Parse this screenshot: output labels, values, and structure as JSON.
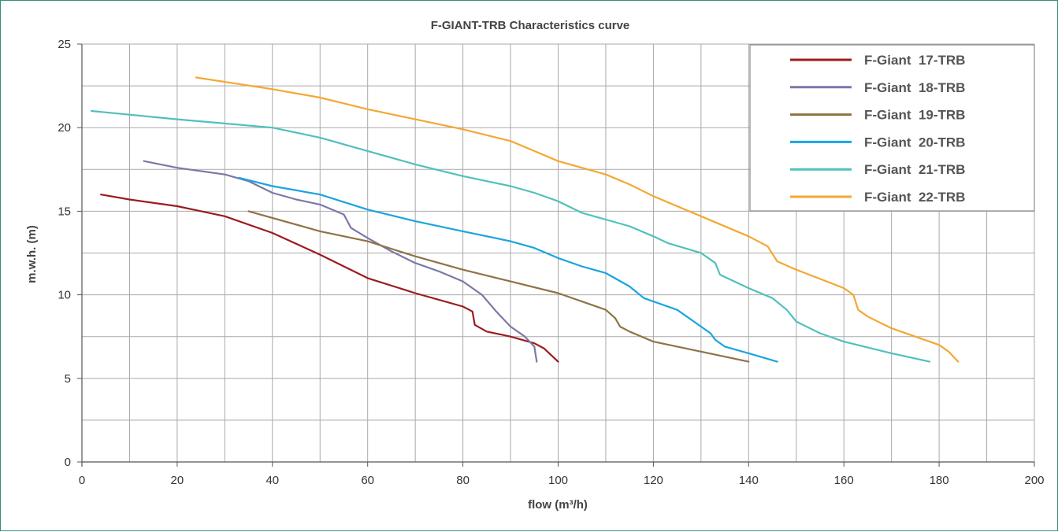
{
  "chart_data": {
    "type": "line",
    "title": "F-GIANT-TRB  Characteristics curve",
    "xlabel": "flow (m³/h)",
    "ylabel": "m.w.h. (m)",
    "xlim": [
      0,
      200
    ],
    "ylim": [
      0,
      25
    ],
    "x_ticks": [
      0,
      20,
      40,
      60,
      80,
      100,
      120,
      140,
      160,
      180,
      200
    ],
    "y_ticks": [
      0,
      5,
      10,
      15,
      20,
      25
    ],
    "grid": true,
    "legend_position": "top-right",
    "series": [
      {
        "name": "F-Giant  17-TRB",
        "color": "#9b1c20",
        "points": [
          [
            4,
            16
          ],
          [
            10,
            15.7
          ],
          [
            20,
            15.3
          ],
          [
            30,
            14.7
          ],
          [
            40,
            13.7
          ],
          [
            50,
            12.4
          ],
          [
            60,
            11.0
          ],
          [
            70,
            10.1
          ],
          [
            80,
            9.3
          ],
          [
            82,
            9.0
          ],
          [
            82.5,
            8.2
          ],
          [
            85,
            7.8
          ],
          [
            90,
            7.5
          ],
          [
            95,
            7.1
          ],
          [
            97,
            6.8
          ],
          [
            100,
            6
          ]
        ]
      },
      {
        "name": "F-Giant  18-TRB",
        "color": "#7b78a8",
        "points": [
          [
            13,
            18
          ],
          [
            20,
            17.6
          ],
          [
            30,
            17.2
          ],
          [
            35,
            16.8
          ],
          [
            40,
            16.1
          ],
          [
            45,
            15.7
          ],
          [
            50,
            15.4
          ],
          [
            55,
            14.8
          ],
          [
            56.5,
            14.0
          ],
          [
            60,
            13.4
          ],
          [
            65,
            12.6
          ],
          [
            70,
            11.9
          ],
          [
            75,
            11.4
          ],
          [
            80,
            10.8
          ],
          [
            84,
            10.0
          ],
          [
            87,
            9.0
          ],
          [
            90,
            8.1
          ],
          [
            93,
            7.5
          ],
          [
            95,
            6.9
          ],
          [
            95.5,
            6
          ]
        ]
      },
      {
        "name": "F-Giant  19-TRB",
        "color": "#8e7346",
        "points": [
          [
            35,
            15
          ],
          [
            40,
            14.6
          ],
          [
            50,
            13.8
          ],
          [
            60,
            13.2
          ],
          [
            70,
            12.3
          ],
          [
            80,
            11.5
          ],
          [
            90,
            10.8
          ],
          [
            100,
            10.1
          ],
          [
            105,
            9.6
          ],
          [
            110,
            9.1
          ],
          [
            112,
            8.6
          ],
          [
            113,
            8.1
          ],
          [
            115,
            7.8
          ],
          [
            120,
            7.2
          ],
          [
            130,
            6.6
          ],
          [
            140,
            6
          ]
        ]
      },
      {
        "name": "F-Giant  20-TRB",
        "color": "#1aa4df",
        "points": [
          [
            33,
            17
          ],
          [
            40,
            16.5
          ],
          [
            50,
            16.0
          ],
          [
            60,
            15.1
          ],
          [
            70,
            14.4
          ],
          [
            80,
            13.8
          ],
          [
            90,
            13.2
          ],
          [
            95,
            12.8
          ],
          [
            100,
            12.2
          ],
          [
            105,
            11.7
          ],
          [
            110,
            11.3
          ],
          [
            115,
            10.5
          ],
          [
            118,
            9.8
          ],
          [
            125,
            9.1
          ],
          [
            130,
            8.1
          ],
          [
            132,
            7.7
          ],
          [
            133,
            7.3
          ],
          [
            135,
            6.9
          ],
          [
            140,
            6.5
          ],
          [
            146,
            6
          ]
        ]
      },
      {
        "name": "F-Giant  21-TRB",
        "color": "#51c0bb",
        "points": [
          [
            2,
            21
          ],
          [
            20,
            20.5
          ],
          [
            40,
            20.0
          ],
          [
            50,
            19.4
          ],
          [
            60,
            18.6
          ],
          [
            70,
            17.8
          ],
          [
            80,
            17.1
          ],
          [
            90,
            16.5
          ],
          [
            95,
            16.1
          ],
          [
            100,
            15.6
          ],
          [
            105,
            14.9
          ],
          [
            110,
            14.5
          ],
          [
            115,
            14.1
          ],
          [
            120,
            13.5
          ],
          [
            123,
            13.1
          ],
          [
            130,
            12.5
          ],
          [
            133,
            11.9
          ],
          [
            134,
            11.2
          ],
          [
            140,
            10.4
          ],
          [
            145,
            9.8
          ],
          [
            148,
            9.1
          ],
          [
            150,
            8.4
          ],
          [
            155,
            7.7
          ],
          [
            160,
            7.2
          ],
          [
            170,
            6.5
          ],
          [
            178,
            6
          ]
        ]
      },
      {
        "name": "F-Giant  22-TRB",
        "color": "#f5a733",
        "points": [
          [
            24,
            23
          ],
          [
            40,
            22.3
          ],
          [
            50,
            21.8
          ],
          [
            60,
            21.1
          ],
          [
            70,
            20.5
          ],
          [
            80,
            19.9
          ],
          [
            90,
            19.2
          ],
          [
            95,
            18.6
          ],
          [
            100,
            18.0
          ],
          [
            105,
            17.6
          ],
          [
            110,
            17.2
          ],
          [
            115,
            16.6
          ],
          [
            120,
            15.9
          ],
          [
            130,
            14.7
          ],
          [
            140,
            13.5
          ],
          [
            144,
            12.9
          ],
          [
            146,
            12.0
          ],
          [
            150,
            11.5
          ],
          [
            160,
            10.4
          ],
          [
            162,
            10.0
          ],
          [
            163,
            9.1
          ],
          [
            165,
            8.7
          ],
          [
            170,
            8.0
          ],
          [
            175,
            7.5
          ],
          [
            180,
            7.0
          ],
          [
            182,
            6.6
          ],
          [
            184,
            6
          ]
        ]
      }
    ]
  }
}
